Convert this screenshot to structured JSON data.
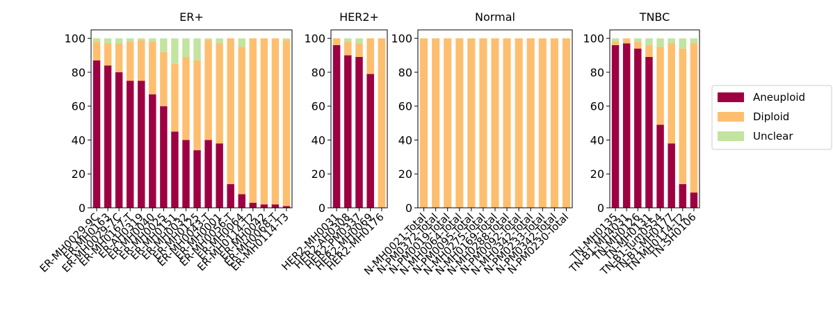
{
  "chart_data": [
    {
      "type": "bar",
      "stacked": true,
      "title": "ER+",
      "categories": [
        "ER-MH0029-9C",
        "ER-MH0163",
        "ER-MH0029-7C",
        "ER-MH0167-T",
        "ER-AH0319",
        "ER-MH0040",
        "ER-MH0025",
        "ER-MH0151",
        "ER-MH0032",
        "ER-MH0125",
        "ER-MH0043-T",
        "ER-MH0001",
        "ER-MH0056-T",
        "ER-MH0064",
        "ER-MH0114-T2",
        "ER-MH0042",
        "ER-MH0068-T",
        "ER-MH0114-T3"
      ],
      "series": [
        {
          "name": "Aneuploid",
          "color": "#9e0142",
          "values": [
            87,
            84,
            80,
            75,
            75,
            67,
            60,
            45,
            40,
            34,
            40,
            38,
            14,
            8,
            3,
            2,
            2,
            1
          ]
        },
        {
          "name": "Diploid",
          "color": "#fdbf6f",
          "values": [
            11,
            13,
            17,
            23,
            24,
            31,
            32,
            40,
            49,
            53,
            59,
            59,
            86,
            87,
            97,
            98,
            98,
            98
          ]
        },
        {
          "name": "Unclear",
          "color": "#c2e4a0",
          "values": [
            2,
            3,
            3,
            2,
            1,
            2,
            8,
            15,
            11,
            13,
            1,
            3,
            0,
            5,
            0,
            0,
            0,
            1
          ]
        }
      ],
      "ylim": [
        0,
        105
      ],
      "yticks": [
        0,
        20,
        40,
        60,
        80,
        100
      ]
    },
    {
      "type": "bar",
      "stacked": true,
      "title": "HER2+",
      "categories": [
        "HER2-MH0031",
        "HER2-AH0308",
        "HER2-PM0337",
        "HER2-MH0069",
        "HER2-MH0176"
      ],
      "series": [
        {
          "name": "Aneuploid",
          "color": "#9e0142",
          "values": [
            96,
            90,
            89,
            79,
            0
          ]
        },
        {
          "name": "Diploid",
          "color": "#fdbf6f",
          "values": [
            4,
            8,
            8,
            21,
            100
          ]
        },
        {
          "name": "Unclear",
          "color": "#c2e4a0",
          "values": [
            0,
            2,
            3,
            0,
            0
          ]
        }
      ],
      "ylim": [
        0,
        105
      ],
      "yticks": [
        0,
        20,
        40,
        60,
        80,
        100
      ]
    },
    {
      "type": "bar",
      "stacked": true,
      "title": "Normal",
      "categories": [
        "N-MH0021-Total",
        "N-PM0372-Total",
        "N-PM0019-Total",
        "N-MH0064-Total",
        "N-PM0095-Total",
        "N-MH0275-Total",
        "N-MH0169-Total",
        "N-MH0288-Total",
        "N-PM0092-Total",
        "N-MH0342-Total",
        "N-PM0233-Total",
        "N-PM0342-Total",
        "N-PM0230-Total"
      ],
      "series": [
        {
          "name": "Aneuploid",
          "color": "#9e0142",
          "values": [
            0,
            0,
            0,
            0,
            0,
            0,
            0,
            0,
            0,
            0,
            0,
            0,
            0
          ]
        },
        {
          "name": "Diploid",
          "color": "#fdbf6f",
          "values": [
            100,
            100,
            100,
            100,
            100,
            100,
            100,
            100,
            100,
            100,
            100,
            100,
            100
          ]
        },
        {
          "name": "Unclear",
          "color": "#c2e4a0",
          "values": [
            0,
            0,
            0,
            0,
            0,
            0,
            0,
            0,
            0,
            0,
            0,
            0,
            0
          ]
        }
      ],
      "ylim": [
        0,
        105
      ],
      "yticks": [
        0,
        20,
        40,
        60,
        80,
        100
      ]
    },
    {
      "type": "bar",
      "stacked": true,
      "title": "TNBC",
      "categories": [
        "TN-MH0135",
        "TN-B1-MH4031",
        "TN-MH0126",
        "TN-MH0131",
        "TN-B1-Tum0554",
        "TN-B1-MH0177",
        "TN-MH0114-T2",
        "TN-SH0106"
      ],
      "series": [
        {
          "name": "Aneuploid",
          "color": "#9e0142",
          "values": [
            96,
            97,
            94,
            89,
            49,
            38,
            14,
            9
          ]
        },
        {
          "name": "Diploid",
          "color": "#fdbf6f",
          "values": [
            2,
            3,
            4,
            7,
            46,
            59,
            80,
            88
          ]
        },
        {
          "name": "Unclear",
          "color": "#c2e4a0",
          "values": [
            2,
            0,
            2,
            4,
            5,
            3,
            6,
            3
          ]
        }
      ],
      "ylim": [
        0,
        105
      ],
      "yticks": [
        0,
        20,
        40,
        60,
        80,
        100
      ]
    }
  ]
}
